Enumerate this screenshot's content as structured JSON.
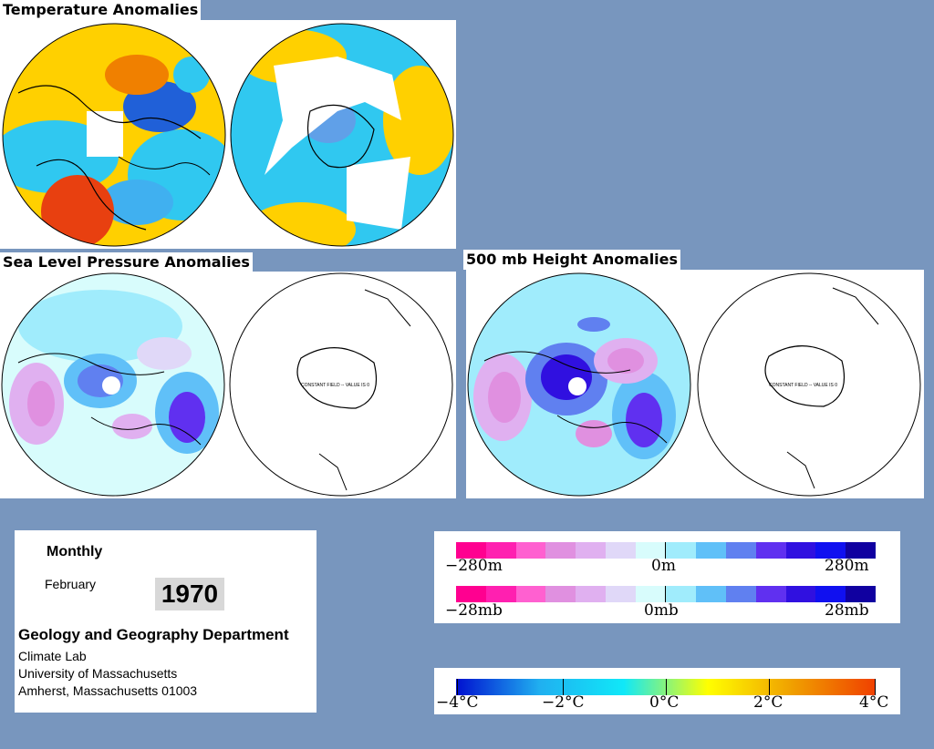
{
  "titles": {
    "temperature": "Temperature Anomalies",
    "slp": "Sea Level Pressure Anomalies",
    "height500": "500 mb Height Anomalies"
  },
  "map_notes": {
    "slp_right": "CONSTANT FIELD -- VALUE IS 0",
    "height_right": "CONSTANT FIELD -- VALUE IS 0"
  },
  "info": {
    "period": "Monthly",
    "month": "February",
    "year": "1970",
    "department": "Geology and Geography Department",
    "lab": "Climate Lab",
    "university": "University of Massachusetts",
    "address": "Amherst, Massachusetts 01003"
  },
  "scales": {
    "height": {
      "left": "−280m",
      "mid": "0m",
      "right": "280m"
    },
    "pressure": {
      "left": "−28mb",
      "mid": "0mb",
      "right": "28mb"
    },
    "temperature": {
      "t1": "−4°C",
      "t2": "−2°C",
      "t3": "0°C",
      "t4": "2°C",
      "t5": "4°C"
    }
  },
  "colors": {
    "background": "#7896be",
    "anom_scale": [
      "#ff0090",
      "#ff20b0",
      "#ff60d0",
      "#e090e0",
      "#e0b0f0",
      "#e0d8f8",
      "#d8fcfc",
      "#a0ecfc",
      "#60c0f8",
      "#6080f0",
      "#6030f0",
      "#3010e0",
      "#1010f0",
      "#1000a0"
    ],
    "temp_scale_stops": [
      "#0010d0",
      "#20b0f0",
      "#10e8f8",
      "#ffff00",
      "#f0a000",
      "#f04000"
    ]
  }
}
